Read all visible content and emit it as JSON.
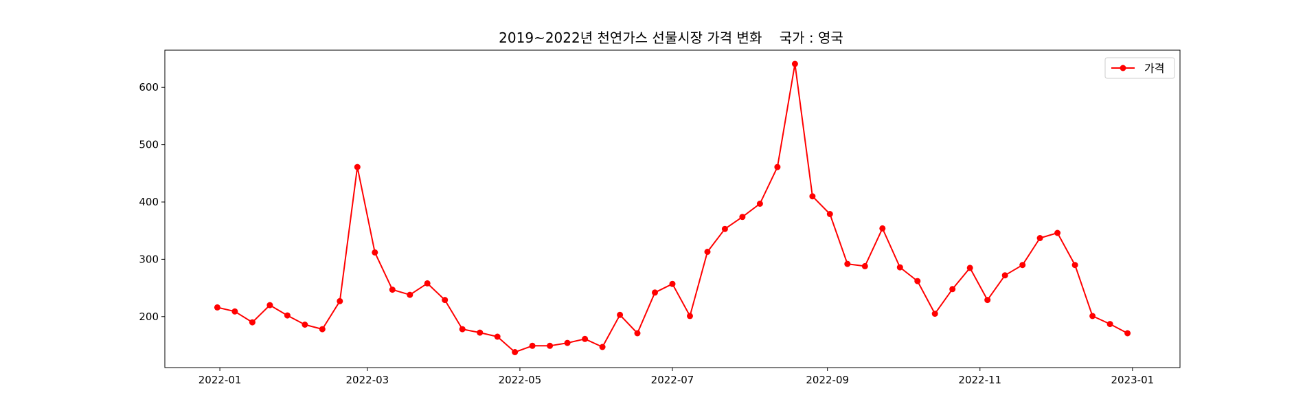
{
  "chart_data": {
    "type": "line",
    "title": "2019~2022년 천연가스 선물시장 가격 변화    국가 : 영국",
    "xlabel": "",
    "ylabel": "",
    "x_start": "2021-12-31",
    "x_step_days": 7,
    "xlim": [
      "2021-12-10",
      "2023-01-20"
    ],
    "ylim": [
      111,
      665
    ],
    "x_ticks": [
      "2022-01",
      "2022-03",
      "2022-05",
      "2022-07",
      "2022-09",
      "2022-11",
      "2023-01"
    ],
    "y_ticks": [
      200,
      300,
      400,
      500,
      600
    ],
    "legend": {
      "position": "top-right"
    },
    "grid": false,
    "series": [
      {
        "name": "가격",
        "color": "#ff0000",
        "marker": "circle",
        "values": [
          216,
          209,
          190,
          220,
          202,
          186,
          178,
          227,
          461,
          312,
          247,
          238,
          258,
          229,
          178,
          172,
          165,
          138,
          149,
          149,
          154,
          161,
          147,
          203,
          171,
          242,
          257,
          201,
          313,
          353,
          374,
          397,
          461,
          641,
          410,
          379,
          292,
          288,
          354,
          286,
          262,
          205,
          248,
          285,
          229,
          272,
          290,
          337,
          346,
          290,
          201,
          187,
          171
        ]
      }
    ]
  }
}
